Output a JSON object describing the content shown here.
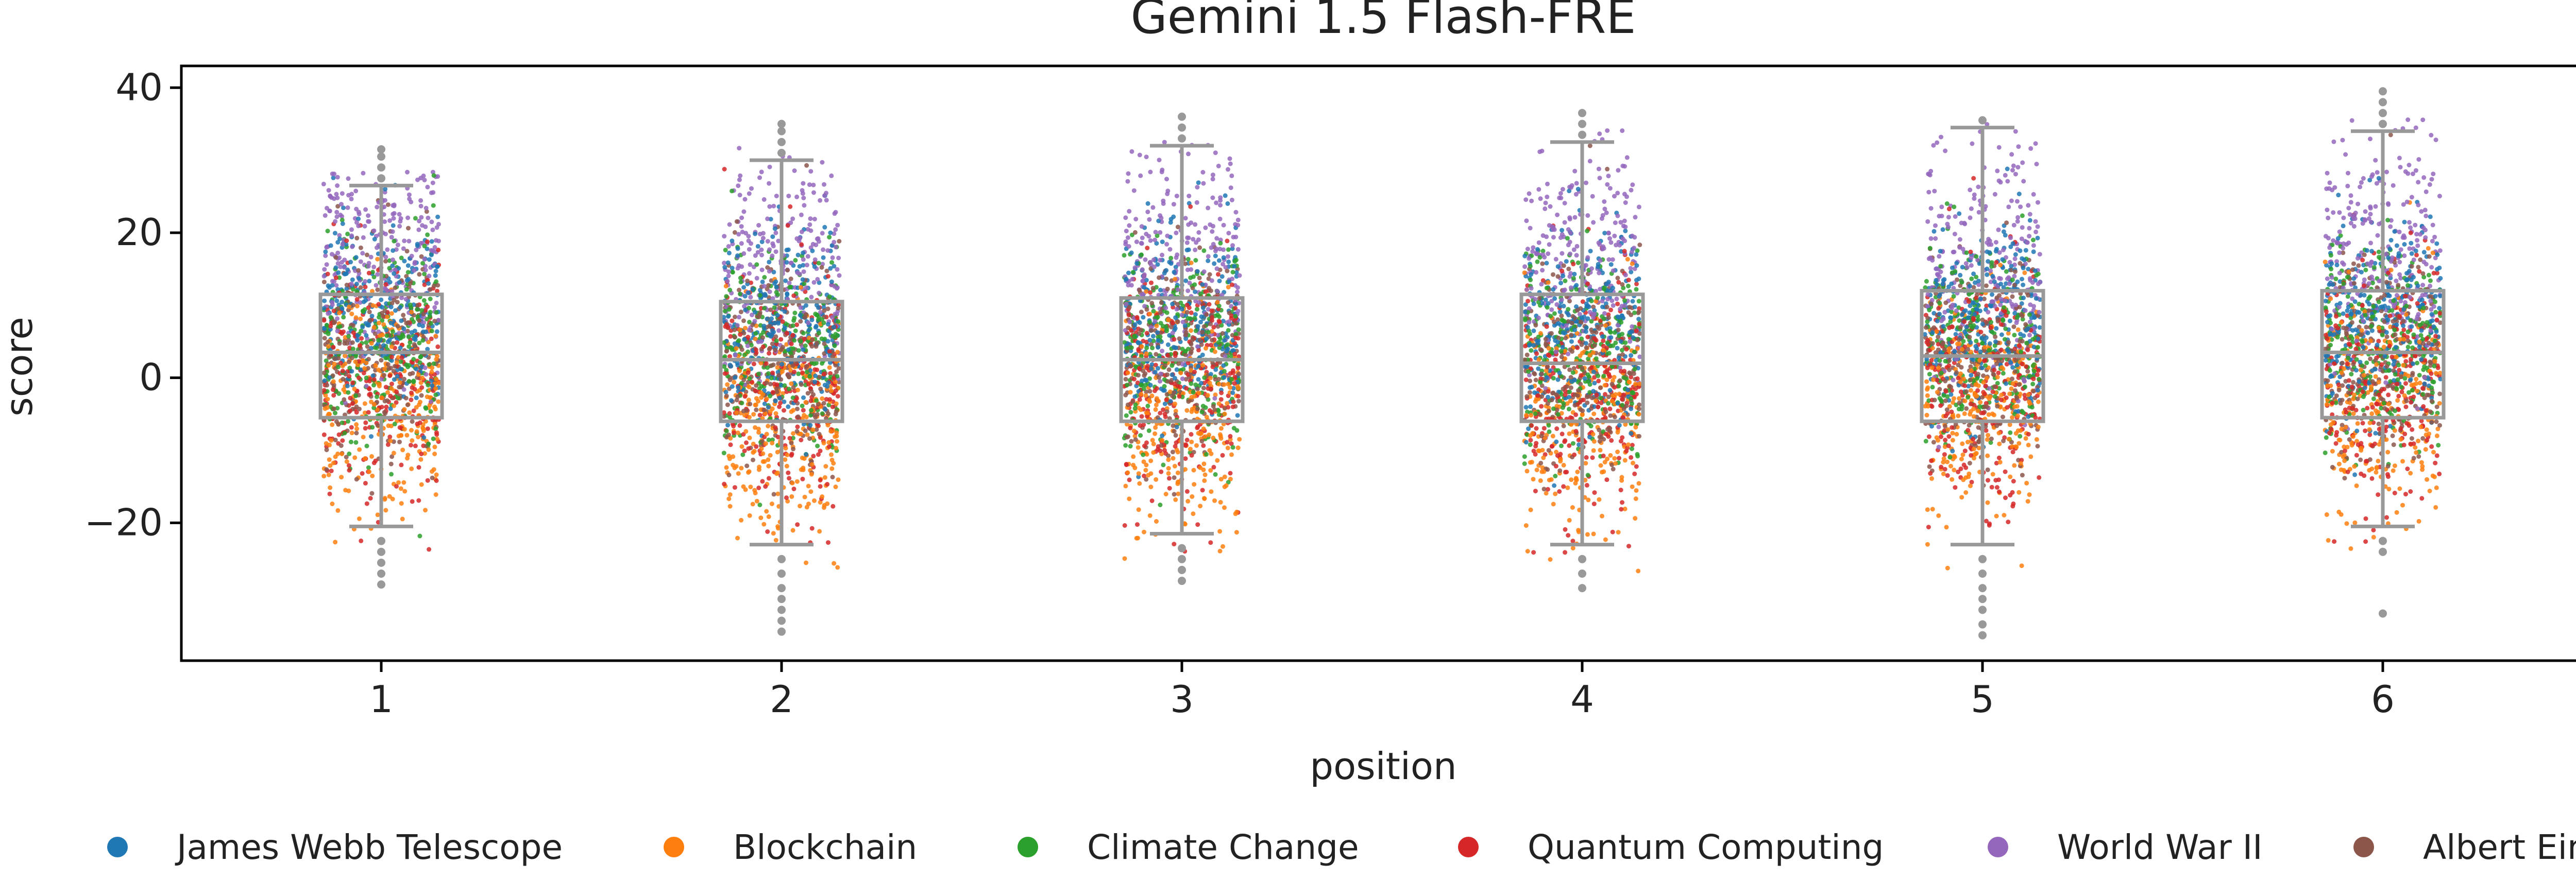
{
  "chart_data": {
    "type": "box-strip",
    "title": "Gemini 1.5 Flash-FRE",
    "xlabel": "position",
    "ylabel": "score",
    "categories": [
      "1",
      "2",
      "3",
      "4",
      "5",
      "6"
    ],
    "ylim": [
      -39,
      43
    ],
    "yticks": [
      -20,
      0,
      20,
      40
    ],
    "ytick_labels": [
      "−20",
      "0",
      "20",
      "40"
    ],
    "grid": false,
    "legend_position": "bottom",
    "series": [
      {
        "name": "James Webb Telescope",
        "color": "#1f77b4"
      },
      {
        "name": "Blockchain",
        "color": "#ff7f0e"
      },
      {
        "name": "Climate Change",
        "color": "#2ca02c"
      },
      {
        "name": "Quantum Computing",
        "color": "#d62728"
      },
      {
        "name": "World War II",
        "color": "#9467bd"
      },
      {
        "name": "Albert Einstein",
        "color": "#8c564b"
      }
    ],
    "box_color": "#999999",
    "boxes": [
      {
        "position": "1",
        "whisker_low": -20.5,
        "q1": -5.5,
        "median": 3.5,
        "q3": 11.5,
        "whisker_high": 26.5,
        "outliers": [
          27.5,
          29,
          30.5,
          31.5,
          -22.5,
          -24,
          -25.5,
          -27,
          -28.5
        ]
      },
      {
        "position": "2",
        "whisker_low": -23,
        "q1": -6,
        "median": 2.5,
        "q3": 10.5,
        "whisker_high": 30,
        "outliers": [
          31,
          32.5,
          34,
          35,
          -25,
          -27,
          -29,
          -30.5,
          -32,
          -33.5,
          -35
        ]
      },
      {
        "position": "3",
        "whisker_low": -21.5,
        "q1": -6,
        "median": 2.5,
        "q3": 11,
        "whisker_high": 32,
        "outliers": [
          33,
          34.5,
          36,
          -23.5,
          -25,
          -26.5,
          -28
        ]
      },
      {
        "position": "4",
        "whisker_low": -23,
        "q1": -6,
        "median": 2,
        "q3": 11.5,
        "whisker_high": 32.5,
        "outliers": [
          33.5,
          35,
          36.5,
          -25,
          -27,
          -29
        ]
      },
      {
        "position": "5",
        "whisker_low": -23,
        "q1": -6,
        "median": 3,
        "q3": 12,
        "whisker_high": 34.5,
        "outliers": [
          35.5,
          -25,
          -27,
          -29,
          -30.5,
          -32,
          -34,
          -35.5
        ]
      },
      {
        "position": "6",
        "whisker_low": -20.5,
        "q1": -5.5,
        "median": 3.5,
        "q3": 12,
        "whisker_high": 34,
        "outliers": [
          35,
          36.5,
          38,
          39.5,
          -22.5,
          -24,
          -32.5
        ]
      }
    ]
  }
}
